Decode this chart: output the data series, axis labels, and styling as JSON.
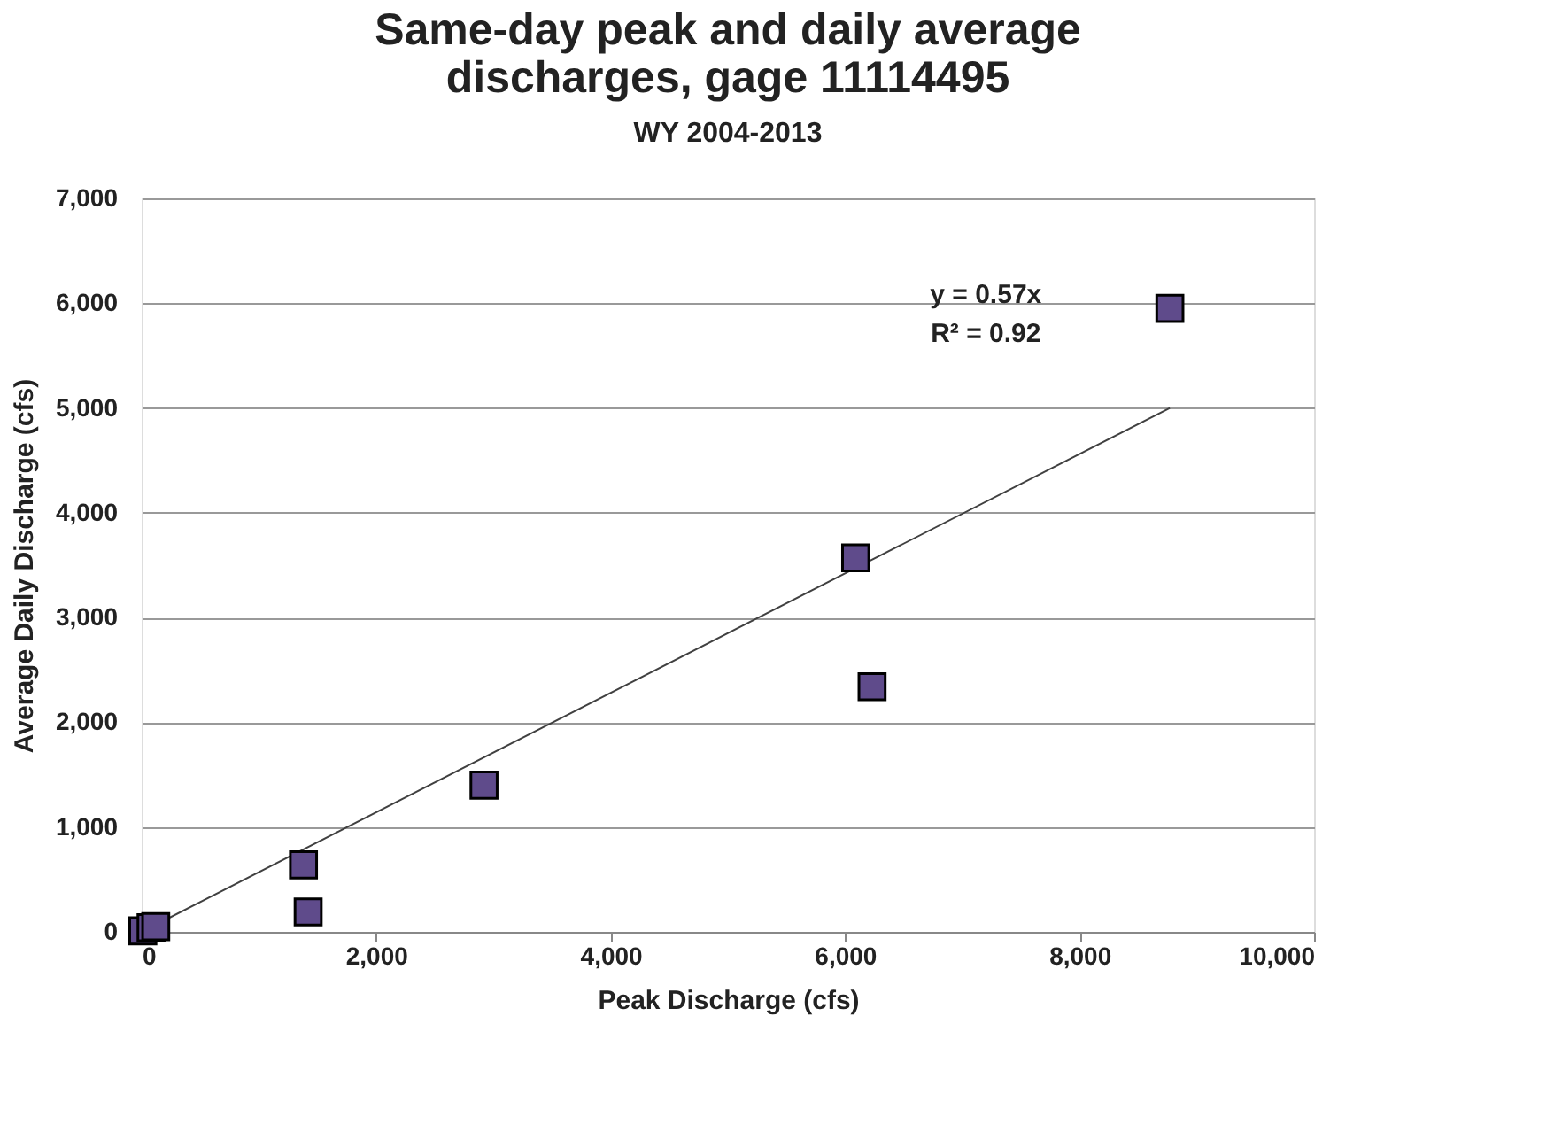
{
  "chart_data": {
    "type": "scatter",
    "title": [
      "Same-day peak and daily average",
      "discharges, gage 11114495"
    ],
    "subtitle": "WY 2004-2013",
    "xlabel": "Peak Discharge (cfs)",
    "ylabel": "Average Daily Discharge (cfs)",
    "marker": "square",
    "grid": "y",
    "xlim": [
      0,
      10000
    ],
    "ylim": [
      0,
      7000
    ],
    "xticks": [
      0,
      {
        "value": 2000,
        "label": "2,000"
      },
      {
        "value": 4000,
        "label": "4,000"
      },
      {
        "value": 6000,
        "label": "6,000"
      },
      {
        "value": 8000,
        "label": "8,000"
      },
      {
        "value": 10000,
        "label": "10,000"
      }
    ],
    "yticks": [
      0,
      {
        "value": 1000,
        "label": "1,000"
      },
      {
        "value": 2000,
        "label": "2,000"
      },
      {
        "value": 3000,
        "label": "3,000"
      },
      {
        "value": 4000,
        "label": "4,000"
      },
      {
        "value": 5000,
        "label": "5,000"
      },
      {
        "value": 6000,
        "label": "6,000"
      },
      {
        "value": 7000,
        "label": "7,000"
      }
    ],
    "series": [
      {
        "type": "line",
        "marker": "none",
        "color": "#404040",
        "x": [
          0,
          8770
        ],
        "values": [
          0,
          5000
        ]
      },
      {
        "color": "#5f4b8b",
        "x": [
          8770,
          6090,
          6230,
          2920,
          1380,
          1420,
          10,
          80,
          120
        ],
        "values": [
          5950,
          3570,
          2340,
          1400,
          640,
          190,
          10,
          40,
          50
        ]
      }
    ],
    "annotations": [
      "y = 0.57x\nR² = 0.92"
    ]
  }
}
